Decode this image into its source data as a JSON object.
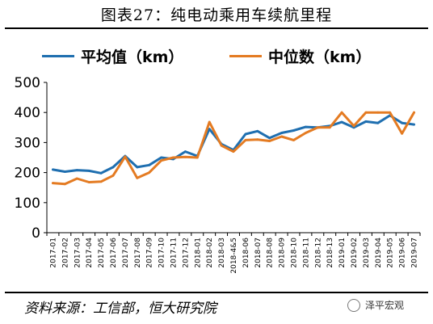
{
  "title": "图表27：纯电动乘用车续航里程",
  "source": "资料来源：工信部，恒大研究院",
  "brand": "泽平宏观",
  "colors": {
    "series1": "#1F6FB0",
    "series2": "#E47B22"
  },
  "icons": {
    "brand": "wechat-icon"
  },
  "chart_data": {
    "type": "line",
    "x": [
      "2017-01",
      "2017-02",
      "2017-03",
      "2017-04",
      "2017-05",
      "2017-06",
      "2017-07",
      "2017-08",
      "2017-09",
      "2017-10",
      "2017-11",
      "2017-12",
      "2018-01",
      "2018-02",
      "2018-03",
      "2018-4&5",
      "2018-06",
      "2018-07",
      "2018-08",
      "2018-09",
      "2018-10",
      "2018-11",
      "2018-12",
      "2018-13",
      "2019-01",
      "2019-02",
      "2019-03",
      "2019-04",
      "2019-05",
      "2019-06",
      "2019-07"
    ],
    "x_tick_labels": [
      "2017-01",
      "2017-02",
      "2017-03",
      "2017-04",
      "2017-05",
      "2017-06",
      "2017-07",
      "2017-08",
      "2017-09",
      "2017-10",
      "2017-11",
      "2017-12",
      "2018-01",
      "2018-02",
      "2018-03",
      "2018-4&5",
      "2018-06",
      "2018-07",
      "2018-08",
      "2018-09",
      "2018-10",
      "2018-11",
      "2018-12",
      "2018-13",
      "2019-01",
      "2019-02",
      "2019-03",
      "2019-04",
      "2019-05",
      "2019-06",
      "2019-07"
    ],
    "series": [
      {
        "name": "平均值（km）",
        "values": [
          210,
          203,
          208,
          206,
          198,
          218,
          255,
          218,
          225,
          250,
          245,
          270,
          255,
          345,
          295,
          275,
          328,
          338,
          315,
          332,
          340,
          352,
          350,
          355,
          368,
          350,
          370,
          365,
          390,
          365,
          360
        ]
      },
      {
        "name": "中位数（km）",
        "values": [
          165,
          162,
          180,
          168,
          170,
          190,
          253,
          182,
          200,
          240,
          250,
          252,
          250,
          368,
          290,
          270,
          308,
          310,
          305,
          320,
          308,
          332,
          350,
          350,
          400,
          355,
          400,
          400,
          400,
          330,
          400
        ]
      }
    ],
    "ylim": [
      0,
      500
    ],
    "yticks": [
      0,
      100,
      200,
      300,
      400,
      500
    ],
    "grid": false,
    "legend": "top"
  }
}
